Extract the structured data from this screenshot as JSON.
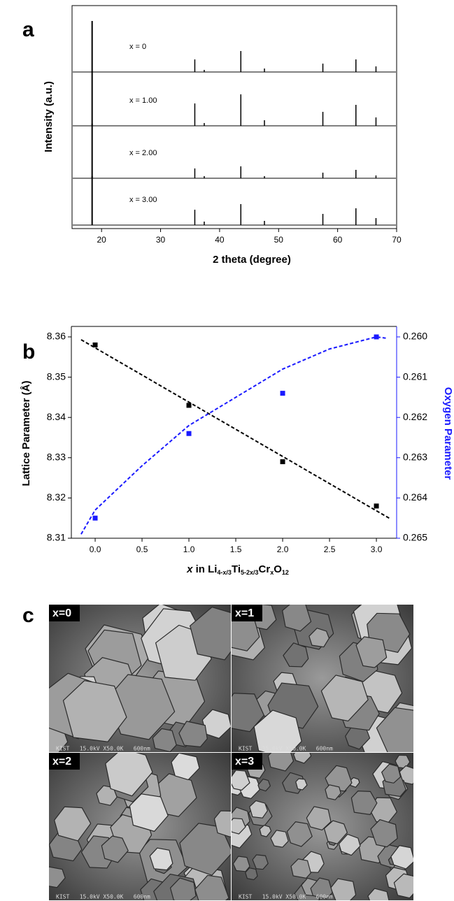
{
  "panel_labels": [
    "a",
    "b",
    "c"
  ],
  "chart_data": [
    {
      "type": "line",
      "xlabel": "2 theta (degree)",
      "ylabel": "Intensity (a.u.)",
      "xlim": [
        15,
        70
      ],
      "xticks": [
        20,
        30,
        40,
        50,
        60,
        70
      ],
      "x": [
        18.4,
        35.8,
        37.4,
        43.6,
        47.6,
        57.5,
        63.1,
        66.5
      ],
      "series": [
        {
          "name": "x = 0",
          "color": "#000000",
          "values": [
            73,
            18,
            3,
            30,
            5,
            12,
            18,
            8
          ]
        },
        {
          "name": "x = 1.00",
          "color": "#000000",
          "values": [
            78,
            32,
            4,
            45,
            8,
            20,
            30,
            12
          ]
        },
        {
          "name": "x = 2.00",
          "color": "#000000",
          "values": [
            78,
            14,
            3,
            17,
            3,
            8,
            12,
            4
          ]
        },
        {
          "name": "x = 3.00",
          "color": "#000000",
          "values": [
            70,
            22,
            5,
            30,
            6,
            16,
            24,
            10
          ]
        }
      ]
    },
    {
      "type": "scatter",
      "ylabel": "Lattice Parameter (Å)",
      "y2label": "Oxygen Parameter",
      "xlabel": [
        "x",
        " in Li",
        "4-x/3",
        "Ti",
        "5-2x/3",
        "Cr",
        "x",
        "O",
        "12"
      ],
      "xlim": [
        -0.254,
        3.216
      ],
      "xticks": [
        {
          "value": 0,
          "label": "0.0"
        },
        {
          "value": 0.5,
          "label": "0.5"
        },
        {
          "value": 1,
          "label": "1.0"
        },
        {
          "value": 1.5,
          "label": "1.5"
        },
        {
          "value": 2,
          "label": "2.0"
        },
        {
          "value": 2.5,
          "label": "2.5"
        },
        {
          "value": 3,
          "label": "3.0"
        }
      ],
      "ylim": [
        8.31,
        8.3626
      ],
      "yticks": [
        8.31,
        8.32,
        8.33,
        8.34,
        8.35,
        8.36
      ],
      "y2lim": [
        0.265,
        0.25974
      ],
      "y2ticks": [
        {
          "value": 0.26,
          "label": "0.260"
        },
        0.261,
        0.262,
        0.263,
        0.264,
        0.265
      ],
      "y2color": "#1a1aff",
      "series": [
        {
          "color": "#000000",
          "style": "dashed",
          "x": [
            -0.15,
            3.15
          ],
          "values": [
            8.3593,
            8.3148
          ]
        },
        {
          "color": "#1a1aff",
          "style": "dashed",
          "axis": "y2",
          "x": [
            -0.15,
            0,
            0.5,
            1,
            1.5,
            2,
            2.5,
            3,
            3.1
          ],
          "values": [
            0.2649,
            0.2643,
            0.2632,
            0.2622,
            0.2615,
            0.2608,
            0.2603,
            0.26,
            0.26003
          ]
        },
        {
          "color": "#000000",
          "marker": "square",
          "x": [
            0,
            1,
            2,
            3
          ],
          "values": [
            8.358,
            8.343,
            8.329,
            8.318
          ]
        },
        {
          "color": "#1a1aff",
          "marker": "square",
          "axis": "y2",
          "x": [
            0,
            1,
            2,
            3
          ],
          "values": [
            0.2645,
            0.2624,
            0.2614,
            0.26
          ]
        }
      ]
    }
  ],
  "micrographs": [
    {
      "label": "x=0",
      "caption": "KIST   15.0kV X50.0K   600nm"
    },
    {
      "label": "x=1",
      "caption": "KIST   15.0kV X50.0K   600nm"
    },
    {
      "label": "x=2",
      "caption": "KIST   15.0kV X50.0K   600nm"
    },
    {
      "label": "x=3",
      "caption": "KIST   15.0kV X50.0K   600nm"
    }
  ]
}
